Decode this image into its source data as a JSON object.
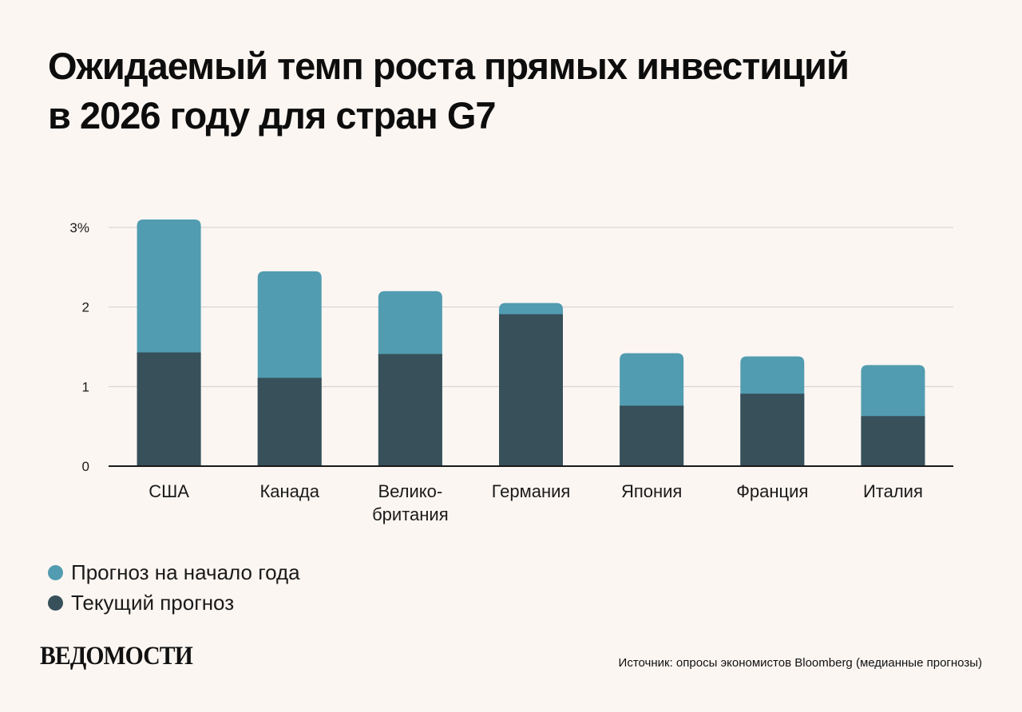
{
  "title_line1": "Ожидаемый темп роста прямых инвестиций",
  "title_line2": "в 2026 году для стран G7",
  "legend": {
    "start": "Прогноз на начало года",
    "current": "Текущий прогноз"
  },
  "logo": "ВЕДОМОСТИ",
  "source": "Источник: опросы экономистов Bloomberg (медианные прогнозы)",
  "colors": {
    "start": "#519cb0",
    "current": "#37505a",
    "grid": "#cfcfcf",
    "axis": "#1a1a1a"
  },
  "chart_data": {
    "type": "bar",
    "title": "Ожидаемый темп роста прямых инвестиций в 2026 году для стран G7",
    "categories": [
      [
        "США"
      ],
      [
        "Канада"
      ],
      [
        "Велико-",
        "британия"
      ],
      [
        "Германия"
      ],
      [
        "Япония"
      ],
      [
        "Франция"
      ],
      [
        "Италия"
      ]
    ],
    "series": [
      {
        "name": "Прогноз на начало года",
        "values": [
          3.1,
          2.45,
          2.2,
          2.05,
          1.42,
          1.38,
          1.27
        ]
      },
      {
        "name": "Текущий прогноз",
        "values": [
          1.42,
          1.1,
          1.4,
          1.9,
          0.75,
          0.9,
          0.62
        ]
      }
    ],
    "y_ticks": [
      "0",
      "1",
      "2",
      "3%"
    ],
    "ylim": [
      0,
      3
    ],
    "grid": true,
    "overlay": true
  }
}
